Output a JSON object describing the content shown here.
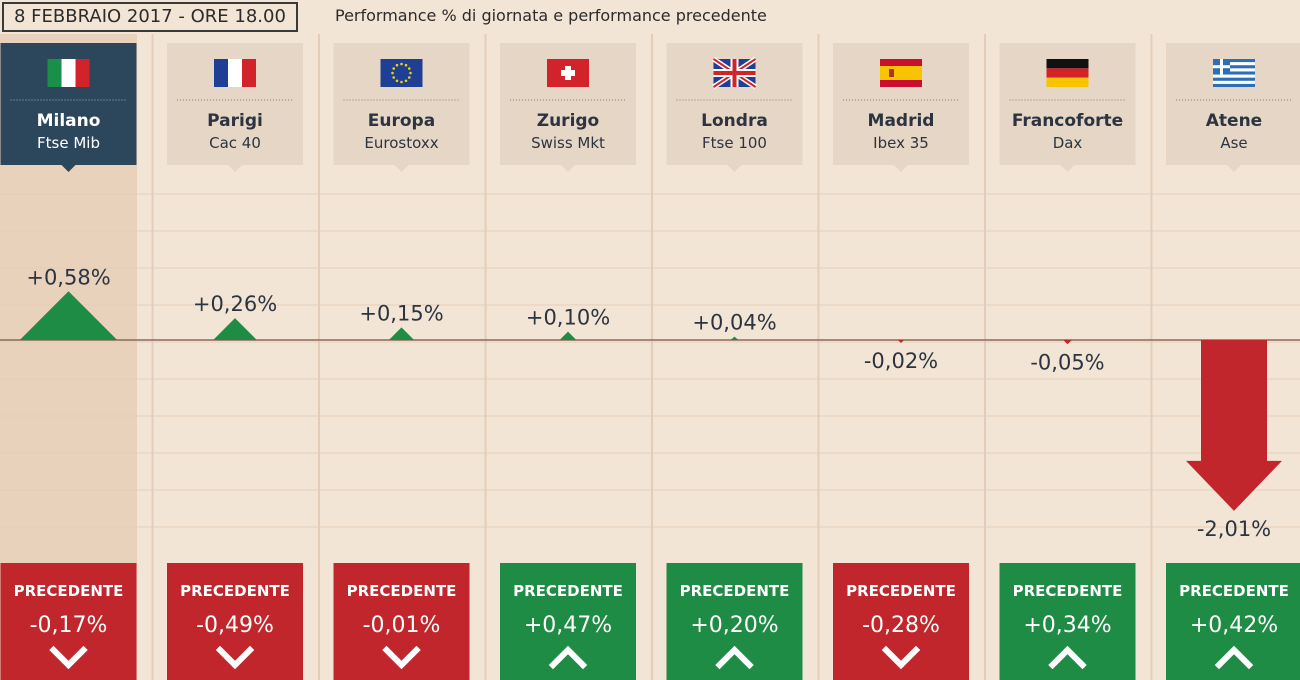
{
  "header": {
    "date_label": "8 FEBBRAIO 2017 - ORE 18.00",
    "subtitle": "Performance % di giornata e performance precedente"
  },
  "colors": {
    "background": "#f3e5d5",
    "highlight_column": "#e9d2bc",
    "header_box": "#e6d6c5",
    "header_box_active": "#2c465c",
    "up": "#1f8c46",
    "down": "#c0262b",
    "text": "#2b3440",
    "grid": "#e4cdb8",
    "zero_line": "#8a6b5a"
  },
  "chart_data": {
    "type": "bar",
    "unit": "%",
    "categories": [
      "Milano",
      "Parigi",
      "Europa",
      "Zurigo",
      "Londra",
      "Madrid",
      "Francoforte",
      "Atene"
    ],
    "indices": [
      "Ftse Mib",
      "Cac 40",
      "Eurostoxx",
      "Swiss Mkt",
      "Ftse 100",
      "Ibex 35",
      "Dax",
      "Ase"
    ],
    "flags": [
      "italy",
      "france",
      "eu",
      "switzerland",
      "uk",
      "spain",
      "germany",
      "greece"
    ],
    "highlight": "Milano",
    "series": [
      {
        "values": [
          0.58,
          0.26,
          0.15,
          0.1,
          0.04,
          -0.02,
          -0.05,
          -2.01
        ],
        "labels": [
          "+0,58%",
          "+0,26%",
          "+0,15%",
          "+0,10%",
          "+0,04%",
          "-0,02%",
          "-0,05%",
          "-2,01%"
        ]
      },
      {
        "name": "PRECEDENTE",
        "values": [
          -0.17,
          -0.49,
          -0.01,
          0.47,
          0.2,
          -0.28,
          0.34,
          0.42
        ],
        "labels": [
          "-0,17%",
          "-0,49%",
          "-0,01%",
          "+0,47%",
          "+0,20%",
          "-0,28%",
          "+0,34%",
          "+0,42%"
        ]
      }
    ]
  }
}
